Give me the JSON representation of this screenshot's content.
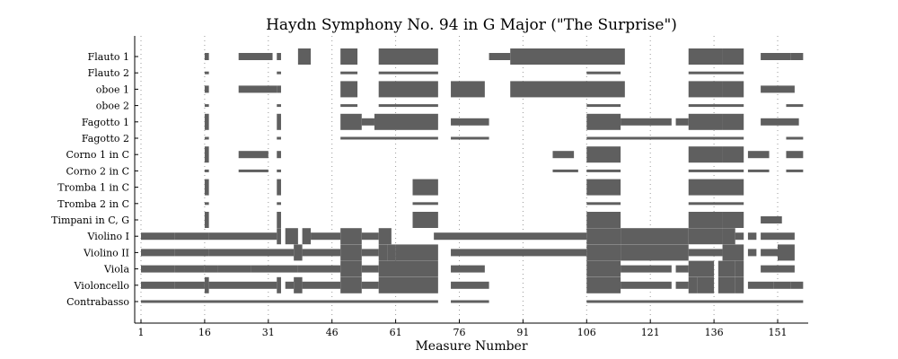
{
  "chart_data": {
    "type": "piano-roll",
    "title": "Haydn Symphony No. 94 in G Major (\"The Surprise\")",
    "xlabel": "Measure Number",
    "ylabel": "",
    "xlim": [
      0,
      158
    ],
    "xticks": [
      1,
      16,
      31,
      46,
      61,
      76,
      91,
      106,
      121,
      136,
      151
    ],
    "grid": "vertical dotted",
    "bar_color": "#5f5f5f",
    "instruments": [
      {
        "name": "Flauto 1",
        "segments": [
          [
            16,
            17,
            "thin"
          ],
          [
            24,
            32,
            "thin"
          ],
          [
            33,
            34,
            "thin"
          ],
          [
            38,
            41,
            "thick"
          ],
          [
            48,
            52,
            "thick"
          ],
          [
            57,
            71,
            "thick"
          ],
          [
            83,
            88,
            "thin"
          ],
          [
            88,
            115,
            "thick"
          ],
          [
            130,
            138,
            "thick"
          ],
          [
            138,
            143,
            "thick"
          ],
          [
            147,
            151,
            "thin"
          ],
          [
            151,
            154,
            "thin"
          ],
          [
            154,
            157,
            "thin"
          ]
        ]
      },
      {
        "name": "Flauto 2",
        "segments": [
          [
            16,
            17,
            "line"
          ],
          [
            33,
            34,
            "line"
          ],
          [
            48,
            52,
            "line"
          ],
          [
            57,
            71,
            "line"
          ],
          [
            106,
            114,
            "line"
          ],
          [
            130,
            143,
            "line"
          ]
        ]
      },
      {
        "name": "oboe 1",
        "segments": [
          [
            16,
            17,
            "thin"
          ],
          [
            24,
            33,
            "thin"
          ],
          [
            33,
            34,
            "thin"
          ],
          [
            48,
            52,
            "thick"
          ],
          [
            57,
            71,
            "thick"
          ],
          [
            74,
            82,
            "thick"
          ],
          [
            88,
            115,
            "thick"
          ],
          [
            130,
            138,
            "thick"
          ],
          [
            138,
            143,
            "thick"
          ],
          [
            147,
            155,
            "thin"
          ]
        ]
      },
      {
        "name": "oboe 2",
        "segments": [
          [
            16,
            17,
            "line"
          ],
          [
            33,
            34,
            "line"
          ],
          [
            48,
            52,
            "line"
          ],
          [
            57,
            71,
            "line"
          ],
          [
            106,
            114,
            "line"
          ],
          [
            130,
            143,
            "line"
          ],
          [
            153,
            157,
            "line"
          ]
        ]
      },
      {
        "name": "Fagotto 1",
        "segments": [
          [
            16,
            17,
            "thick"
          ],
          [
            33,
            34,
            "thick"
          ],
          [
            48,
            53,
            "thick"
          ],
          [
            53,
            56,
            "thin"
          ],
          [
            56,
            71,
            "thick"
          ],
          [
            74,
            83,
            "thin"
          ],
          [
            106,
            114,
            "thick"
          ],
          [
            114,
            126,
            "thin"
          ],
          [
            127,
            130,
            "thin"
          ],
          [
            130,
            138,
            "thick"
          ],
          [
            138,
            143,
            "thick"
          ],
          [
            147,
            156,
            "thin"
          ]
        ]
      },
      {
        "name": "Fagotto 2",
        "segments": [
          [
            16,
            17,
            "line"
          ],
          [
            33,
            34,
            "line"
          ],
          [
            48,
            71,
            "line"
          ],
          [
            74,
            83,
            "line"
          ],
          [
            106,
            143,
            "line"
          ],
          [
            153,
            157,
            "line"
          ]
        ]
      },
      {
        "name": "Corno 1 in C",
        "segments": [
          [
            16,
            17,
            "thick"
          ],
          [
            24,
            31,
            "thin"
          ],
          [
            33,
            34,
            "thin"
          ],
          [
            98,
            103,
            "thin"
          ],
          [
            106,
            114,
            "thick"
          ],
          [
            130,
            138,
            "thick"
          ],
          [
            138,
            143,
            "thick"
          ],
          [
            144,
            149,
            "thin"
          ],
          [
            153,
            157,
            "thin"
          ]
        ]
      },
      {
        "name": "Corno 2 in C",
        "segments": [
          [
            16,
            17,
            "line"
          ],
          [
            24,
            31,
            "line"
          ],
          [
            33,
            34,
            "line"
          ],
          [
            98,
            104,
            "line"
          ],
          [
            106,
            114,
            "line"
          ],
          [
            130,
            143,
            "line"
          ],
          [
            144,
            149,
            "line"
          ],
          [
            153,
            157,
            "line"
          ]
        ]
      },
      {
        "name": "Tromba 1 in C",
        "segments": [
          [
            16,
            17,
            "thick"
          ],
          [
            33,
            34,
            "thick"
          ],
          [
            65,
            71,
            "thick"
          ],
          [
            106,
            114,
            "thick"
          ],
          [
            130,
            143,
            "thick"
          ]
        ]
      },
      {
        "name": "Tromba 2 in C",
        "segments": [
          [
            16,
            17,
            "line"
          ],
          [
            33,
            34,
            "line"
          ],
          [
            65,
            71,
            "line"
          ],
          [
            106,
            114,
            "line"
          ],
          [
            130,
            143,
            "line"
          ]
        ]
      },
      {
        "name": "Timpani in C, G",
        "segments": [
          [
            16,
            17,
            "thick"
          ],
          [
            33,
            34,
            "thick"
          ],
          [
            65,
            71,
            "thick"
          ],
          [
            106,
            114,
            "thick"
          ],
          [
            130,
            138,
            "thick"
          ],
          [
            138,
            143,
            "thick"
          ],
          [
            147,
            152,
            "thin"
          ]
        ]
      },
      {
        "name": "Violino I",
        "segments": [
          [
            1,
            9,
            "thin"
          ],
          [
            9,
            17,
            "thin"
          ],
          [
            17,
            33,
            "thin"
          ],
          [
            33,
            34,
            "thick"
          ],
          [
            35,
            38,
            "thick"
          ],
          [
            39,
            41,
            "thick"
          ],
          [
            41,
            48,
            "thin"
          ],
          [
            48,
            53,
            "thick"
          ],
          [
            53,
            57,
            "thin"
          ],
          [
            57,
            60,
            "thick"
          ],
          [
            70,
            106,
            "thin"
          ],
          [
            106,
            114,
            "thick"
          ],
          [
            114,
            130,
            "thick"
          ],
          [
            130,
            138,
            "thick"
          ],
          [
            138,
            141,
            "thick"
          ],
          [
            141,
            143,
            "thin"
          ],
          [
            144,
            146,
            "thin"
          ],
          [
            147,
            155,
            "thin"
          ]
        ]
      },
      {
        "name": "Violino II",
        "segments": [
          [
            1,
            9,
            "thin"
          ],
          [
            9,
            17,
            "thin"
          ],
          [
            17,
            37,
            "thin"
          ],
          [
            37,
            39,
            "thick"
          ],
          [
            39,
            48,
            "thin"
          ],
          [
            48,
            53,
            "thick"
          ],
          [
            53,
            57,
            "thin"
          ],
          [
            57,
            59,
            "thick"
          ],
          [
            59,
            61,
            "thick"
          ],
          [
            61,
            71,
            "thick"
          ],
          [
            74,
            106,
            "thin"
          ],
          [
            106,
            114,
            "thick"
          ],
          [
            114,
            130,
            "thick"
          ],
          [
            130,
            138,
            "thin"
          ],
          [
            138,
            143,
            "thick"
          ],
          [
            144,
            146,
            "thin"
          ],
          [
            147,
            151,
            "thin"
          ],
          [
            151,
            155,
            "thick"
          ]
        ]
      },
      {
        "name": "Viola",
        "segments": [
          [
            1,
            9,
            "thin"
          ],
          [
            9,
            16,
            "thin"
          ],
          [
            16,
            19,
            "thin"
          ],
          [
            19,
            27,
            "thin"
          ],
          [
            27,
            38,
            "thin"
          ],
          [
            38,
            48,
            "thin"
          ],
          [
            48,
            53,
            "thick"
          ],
          [
            53,
            57,
            "thin"
          ],
          [
            57,
            71,
            "thick"
          ],
          [
            74,
            82,
            "thin"
          ],
          [
            106,
            114,
            "thick"
          ],
          [
            114,
            126,
            "thin"
          ],
          [
            127,
            130,
            "thin"
          ],
          [
            130,
            136,
            "thick"
          ],
          [
            137,
            141,
            "thick"
          ],
          [
            141,
            143,
            "thick"
          ],
          [
            147,
            151,
            "thin"
          ],
          [
            151,
            155,
            "thin"
          ]
        ]
      },
      {
        "name": "Violoncello",
        "segments": [
          [
            1,
            9,
            "thin"
          ],
          [
            9,
            16,
            "thin"
          ],
          [
            16,
            17,
            "thick"
          ],
          [
            17,
            33,
            "thin"
          ],
          [
            33,
            34,
            "thick"
          ],
          [
            35,
            37,
            "thin"
          ],
          [
            37,
            39,
            "thick"
          ],
          [
            39,
            48,
            "thin"
          ],
          [
            48,
            53,
            "thick"
          ],
          [
            53,
            57,
            "thin"
          ],
          [
            57,
            71,
            "thick"
          ],
          [
            74,
            83,
            "thin"
          ],
          [
            106,
            114,
            "thick"
          ],
          [
            114,
            126,
            "thin"
          ],
          [
            127,
            130,
            "thin"
          ],
          [
            130,
            132,
            "thick"
          ],
          [
            132,
            136,
            "thick"
          ],
          [
            137,
            141,
            "thick"
          ],
          [
            141,
            143,
            "thick"
          ],
          [
            144,
            150,
            "thin"
          ],
          [
            150,
            154,
            "thin"
          ],
          [
            154,
            157,
            "thin"
          ]
        ]
      },
      {
        "name": "Contrabasso",
        "segments": [
          [
            1,
            71,
            "line"
          ],
          [
            74,
            83,
            "line"
          ],
          [
            106,
            157,
            "line"
          ]
        ]
      }
    ]
  }
}
